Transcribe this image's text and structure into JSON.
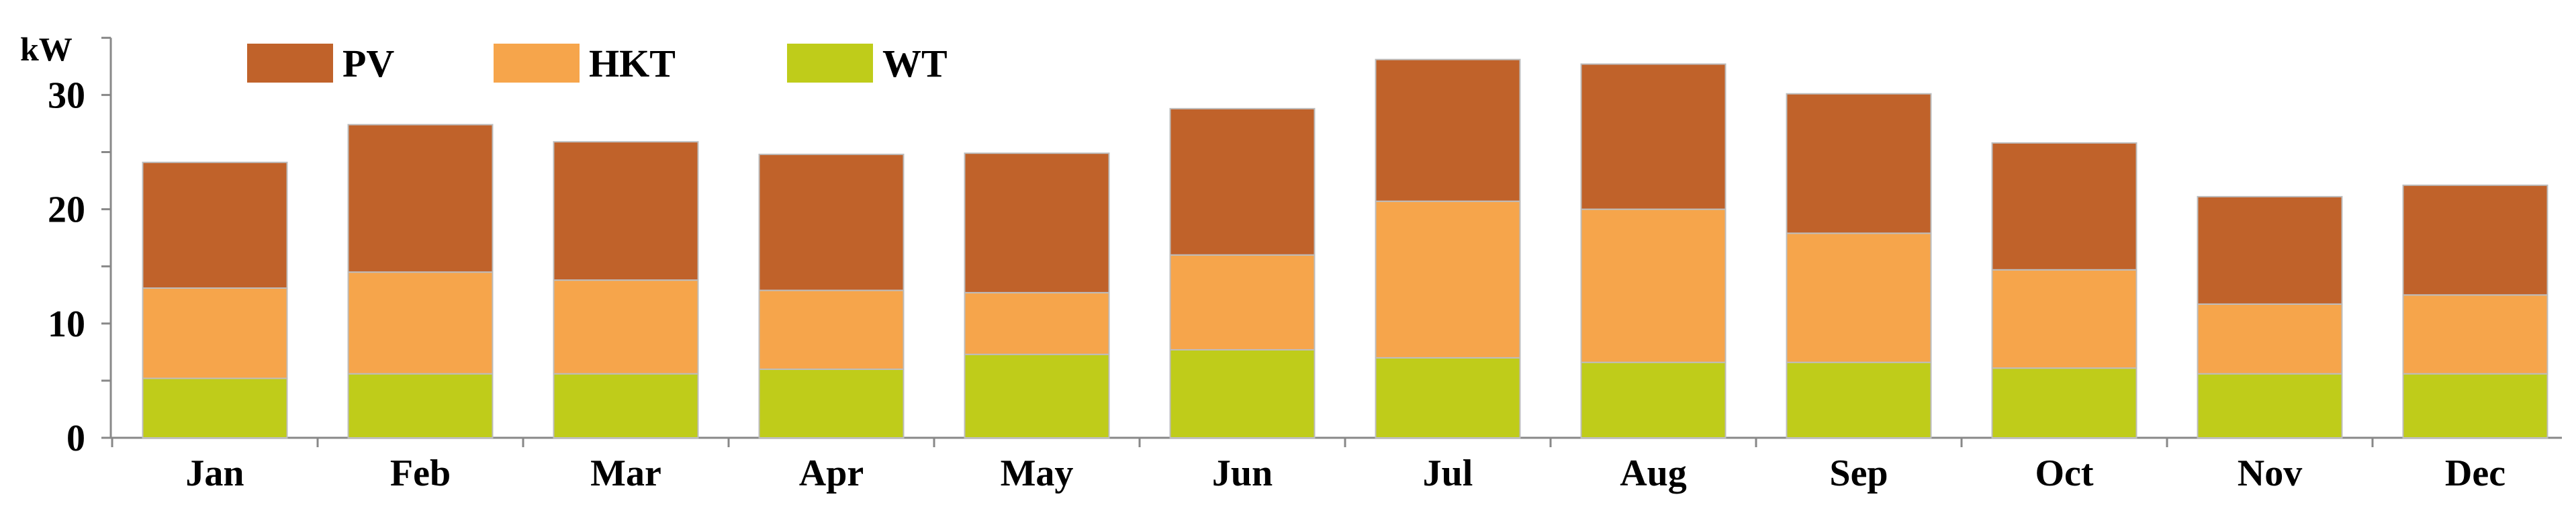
{
  "chart_data": {
    "type": "bar",
    "stacked": true,
    "ylabel": "kW",
    "ylim": [
      0,
      35
    ],
    "yticks": [
      0,
      10,
      20,
      30
    ],
    "grid": false,
    "legend_position": "top-left",
    "categories": [
      "Jan",
      "Feb",
      "Mar",
      "Apr",
      "May",
      "Jun",
      "Jul",
      "Aug",
      "Sep",
      "Oct",
      "Nov",
      "Dec"
    ],
    "series": [
      {
        "name": "WT",
        "color": "#bfcc1a",
        "values": [
          5.2,
          5.6,
          5.6,
          6.0,
          7.3,
          7.7,
          7.0,
          6.6,
          6.6,
          6.1,
          5.6,
          5.6
        ]
      },
      {
        "name": "HKT",
        "color": "#f6a54b",
        "values": [
          7.9,
          8.9,
          8.2,
          6.9,
          5.4,
          8.3,
          13.7,
          13.4,
          11.3,
          8.6,
          6.1,
          6.9
        ]
      },
      {
        "name": "PV",
        "color": "#c0622a",
        "values": [
          11.0,
          12.9,
          12.1,
          11.9,
          12.2,
          12.8,
          12.4,
          12.7,
          12.2,
          11.1,
          9.4,
          9.6
        ]
      }
    ],
    "legend_order": [
      "PV",
      "HKT",
      "WT"
    ]
  }
}
